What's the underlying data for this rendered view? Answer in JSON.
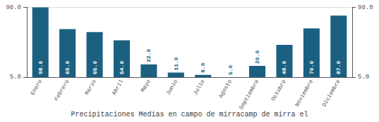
{
  "chart_data": {
    "type": "bar",
    "title": "Precipitaciones Medias en campo de mirracamp de mirra el",
    "categories": [
      "Enero",
      "Febrero",
      "Marzo",
      "Abril",
      "Mayo",
      "Junio",
      "Julio",
      "Agosto",
      "Septiembre",
      "Octubre",
      "Noviembre",
      "Diciembre"
    ],
    "values": [
      98,
      69,
      65,
      54,
      22,
      11,
      8,
      5,
      20,
      48,
      70,
      87
    ],
    "value_labels": [
      "98.0",
      "69.0",
      "65.0",
      "54.0",
      "22.0",
      "11.0",
      "8.0",
      "5.0",
      "20.0",
      "48.0",
      "70.0",
      "87.0"
    ],
    "color": "#1b6080",
    "ylim": [
      5,
      98.49
    ],
    "yticks": [
      {
        "value": 5,
        "label": "5.0"
      },
      {
        "value": 98,
        "label": "98.0"
      }
    ],
    "y2lim": [
      5,
      98.49
    ],
    "y2ticks": [
      {
        "value": 5,
        "label": "5.0"
      },
      {
        "value": 98,
        "label": "98.0"
      }
    ],
    "grid": true,
    "data_labels": true
  }
}
